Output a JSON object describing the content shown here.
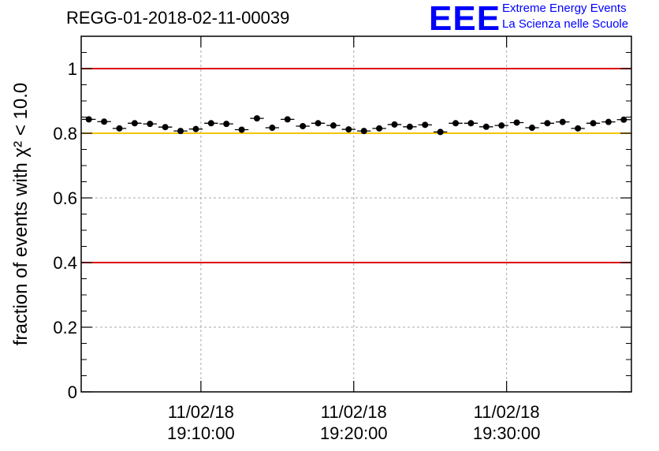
{
  "header": {
    "title": "REGG-01-2018-02-11-00039",
    "logo_mark": "EEE",
    "logo_line1": "Extreme Energy Events",
    "logo_line2": "La Scienza nelle Scuole"
  },
  "colors": {
    "data": "#000000",
    "upper_limit": "#e00000",
    "lower_limit": "#e00000",
    "threshold": "#f5c400",
    "grid": "#aaaaaa",
    "logo": "#0000ff"
  },
  "chart_data": {
    "type": "scatter",
    "title": "REGG-01-2018-02-11-00039",
    "ylabel": "fraction of events with χ² < 10.0",
    "xlabel": "",
    "ylim": [
      0,
      1.1
    ],
    "xlim": [
      "2018-02-11 19:02:10",
      "2018-02-11 19:38:10"
    ],
    "grid": true,
    "yticks": [
      0,
      0.2,
      0.4,
      0.6,
      0.8,
      1
    ],
    "ytick_labels": [
      "0",
      "0.2",
      "0.4",
      "0.6",
      "0.8",
      "1"
    ],
    "xticks": [
      {
        "time": "2018-02-11 19:10:00",
        "line1": "11/02/18",
        "line2": "19:10:00"
      },
      {
        "time": "2018-02-11 19:20:00",
        "line1": "11/02/18",
        "line2": "19:20:00"
      },
      {
        "time": "2018-02-11 19:30:00",
        "line1": "11/02/18",
        "line2": "19:30:00"
      }
    ],
    "reference_lines": [
      {
        "y": 1.0,
        "color": "#e00000"
      },
      {
        "y": 0.8,
        "color": "#f5c400"
      },
      {
        "y": 0.4,
        "color": "#e00000"
      }
    ],
    "series": [
      {
        "x": [
          "2018-02-11 19:02:40",
          "2018-02-11 19:03:40",
          "2018-02-11 19:04:40",
          "2018-02-11 19:05:40",
          "2018-02-11 19:06:40",
          "2018-02-11 19:07:40",
          "2018-02-11 19:08:40",
          "2018-02-11 19:09:40",
          "2018-02-11 19:10:40",
          "2018-02-11 19:11:40",
          "2018-02-11 19:12:40",
          "2018-02-11 19:13:40",
          "2018-02-11 19:14:40",
          "2018-02-11 19:15:40",
          "2018-02-11 19:16:40",
          "2018-02-11 19:17:40",
          "2018-02-11 19:18:40",
          "2018-02-11 19:19:40",
          "2018-02-11 19:20:40",
          "2018-02-11 19:21:40",
          "2018-02-11 19:22:40",
          "2018-02-11 19:23:40",
          "2018-02-11 19:24:40",
          "2018-02-11 19:25:40",
          "2018-02-11 19:26:40",
          "2018-02-11 19:27:40",
          "2018-02-11 19:28:40",
          "2018-02-11 19:29:40",
          "2018-02-11 19:30:40",
          "2018-02-11 19:31:40",
          "2018-02-11 19:32:40",
          "2018-02-11 19:33:40",
          "2018-02-11 19:34:40",
          "2018-02-11 19:35:40",
          "2018-02-11 19:36:40",
          "2018-02-11 19:37:40"
        ],
        "y": [
          0.843,
          0.836,
          0.815,
          0.831,
          0.829,
          0.819,
          0.807,
          0.813,
          0.831,
          0.829,
          0.811,
          0.846,
          0.817,
          0.843,
          0.822,
          0.831,
          0.824,
          0.812,
          0.807,
          0.815,
          0.827,
          0.82,
          0.826,
          0.804,
          0.831,
          0.831,
          0.82,
          0.824,
          0.833,
          0.817,
          0.831,
          0.835,
          0.815,
          0.831,
          0.835,
          0.842
        ],
        "yerr": 0.006
      }
    ]
  }
}
